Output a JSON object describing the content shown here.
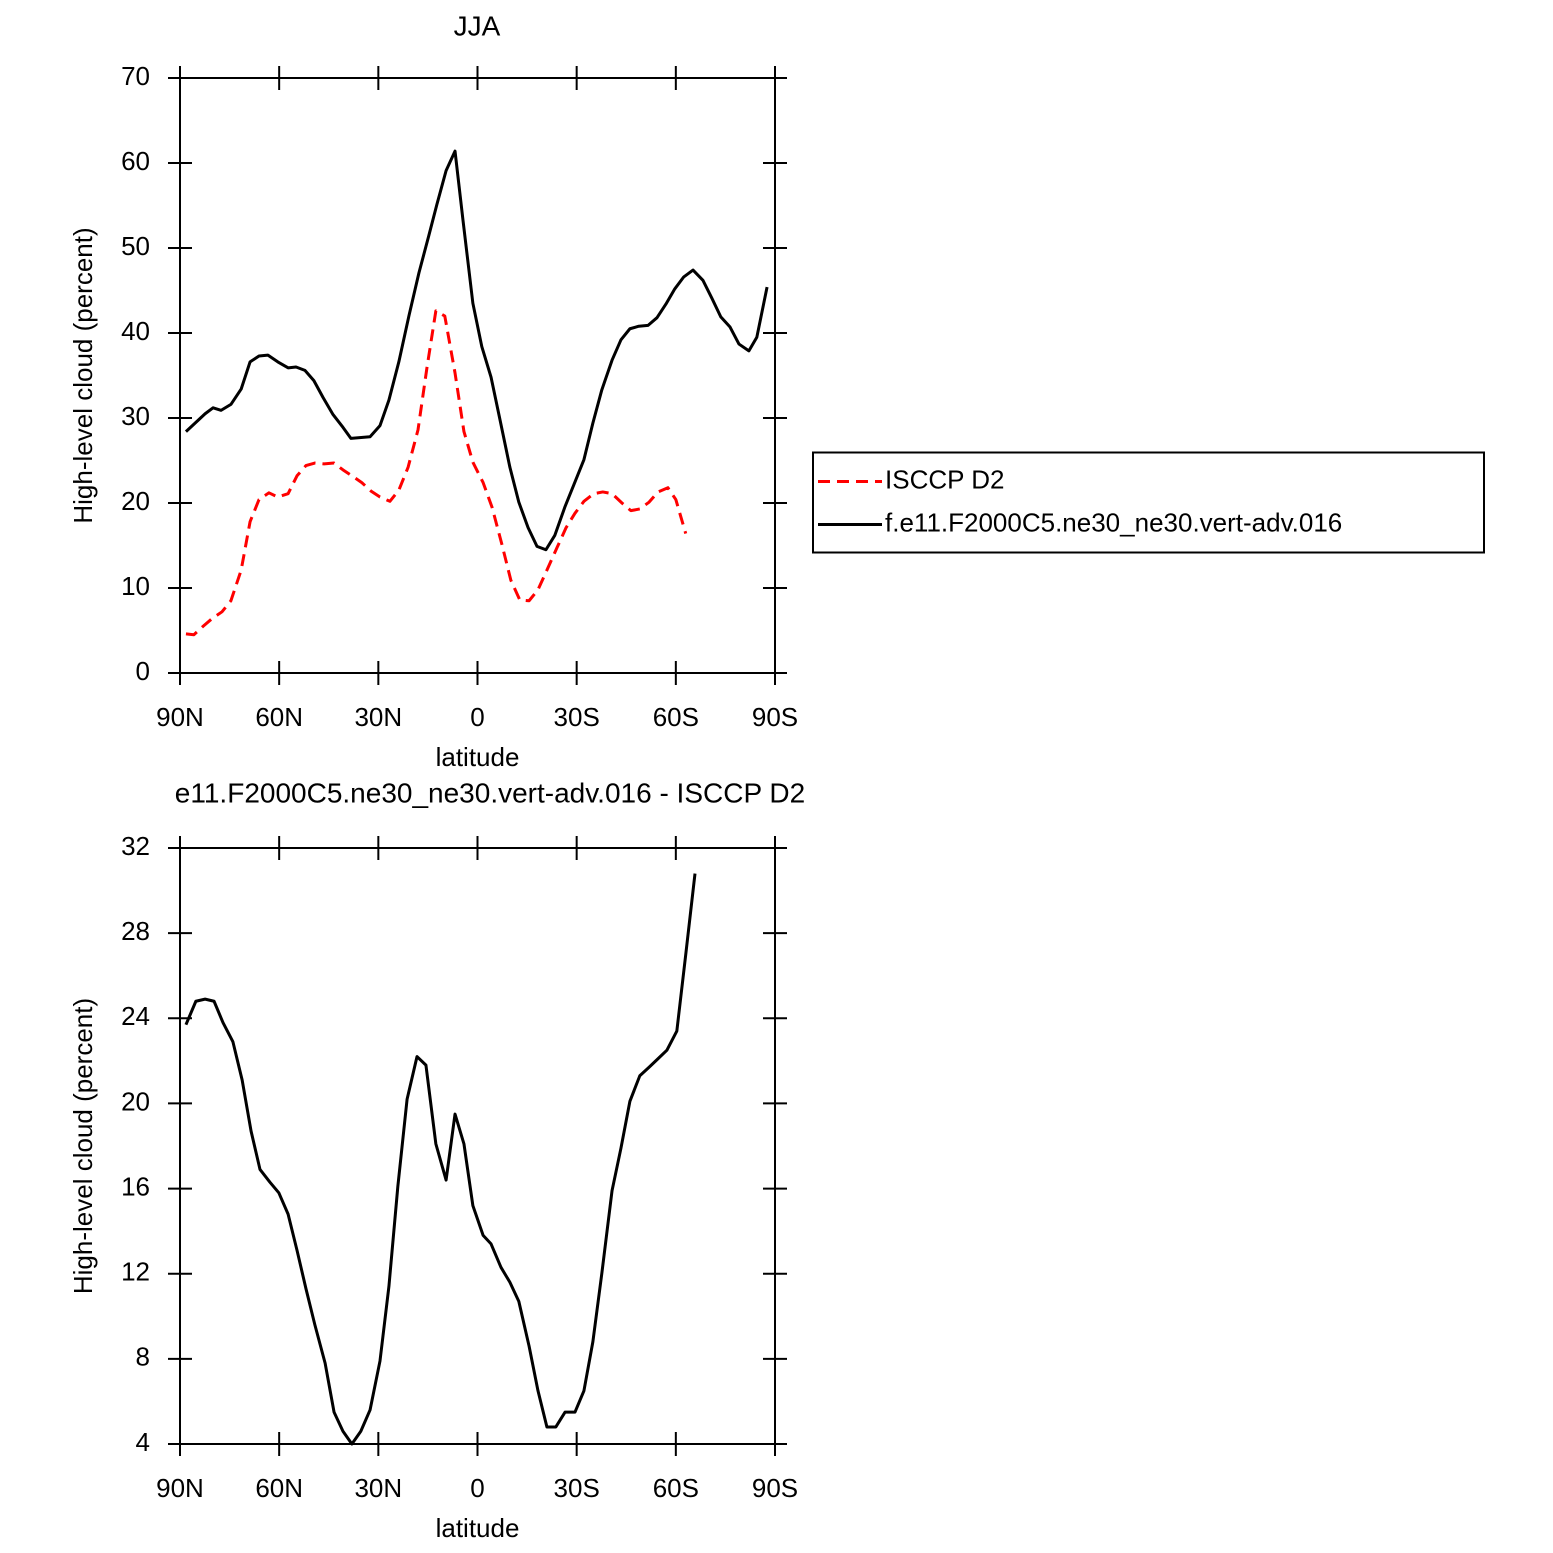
{
  "chart_data": [
    {
      "type": "line",
      "title": "JJA",
      "xlabel": "latitude",
      "ylabel": "High-level cloud (percent)",
      "xlim": [
        90,
        -90
      ],
      "xticks": [
        {
          "value": 90,
          "label": "90N"
        },
        {
          "value": 60,
          "label": "60N"
        },
        {
          "value": 30,
          "label": "30N"
        },
        0,
        {
          "value": -30,
          "label": "30S"
        },
        {
          "value": -60,
          "label": "60S"
        },
        {
          "value": -90,
          "label": "90S"
        }
      ],
      "ylim": [
        0,
        70
      ],
      "yticks": [
        0,
        10,
        20,
        30,
        40,
        50,
        60,
        70
      ],
      "legend": "right",
      "series": [
        {
          "name": "ISCCP D2",
          "color": "#ff0000",
          "line_style": "dashed",
          "x": [
            88.2,
            85.8,
            83.0,
            80.3,
            77.3,
            74.6,
            71.5,
            68.8,
            66.1,
            63.1,
            60.4,
            57.3,
            54.6,
            51.9,
            49.2,
            46.4,
            43.4,
            40.7,
            38.0,
            35.0,
            32.2,
            29.5,
            26.5,
            23.8,
            21.0,
            18.0,
            15.3,
            12.6,
            9.9,
            6.8,
            4.1,
            1.4,
            -1.7,
            -4.4,
            -7.4,
            -10.1,
            -12.8,
            -15.6,
            -18.3,
            -21.0,
            -24.0,
            -26.8,
            -29.5,
            -32.2,
            -35.2,
            -37.9,
            -40.7,
            -43.7,
            -46.4,
            -49.1,
            -51.9,
            -54.6,
            -57.6,
            -60.0,
            -63.0
          ],
          "values": [
            4.6,
            4.5,
            5.5,
            6.4,
            7.2,
            8.5,
            12.1,
            17.8,
            20.4,
            21.2,
            20.7,
            21.1,
            23.2,
            24.4,
            24.7,
            24.6,
            24.7,
            23.9,
            23.2,
            22.4,
            21.4,
            20.7,
            20.2,
            21.5,
            24.2,
            28.6,
            35.9,
            42.6,
            42.0,
            35.3,
            28.4,
            24.8,
            22.4,
            19.5,
            15.1,
            10.9,
            8.6,
            8.5,
            9.8,
            12.1,
            14.7,
            17.1,
            18.8,
            20.2,
            21.1,
            21.3,
            21.1,
            20.0,
            19.1,
            19.3,
            20.1,
            21.3,
            21.8,
            20.4,
            16.4
          ]
        },
        {
          "name": "f.e11.F2000C5.ne30_ne30.vert-adv.016",
          "color": "#000000",
          "line_style": "solid",
          "x": [
            88.2,
            82.4,
            80.0,
            77.6,
            74.6,
            71.5,
            68.8,
            66.1,
            63.4,
            60.4,
            57.3,
            54.9,
            52.2,
            49.5,
            46.7,
            43.7,
            40.7,
            38.3,
            32.5,
            29.5,
            26.8,
            23.8,
            20.7,
            17.7,
            14.7,
            12.3,
            9.5,
            6.8,
            4.4,
            1.4,
            -1.3,
            -4.1,
            -6.8,
            -9.8,
            -12.5,
            -15.3,
            -18.0,
            -20.7,
            -23.4,
            -26.5,
            -29.2,
            -32.2,
            -34.9,
            -37.6,
            -40.7,
            -43.4,
            -46.1,
            -48.8,
            -51.6,
            -54.3,
            -57.0,
            -59.7,
            -62.4,
            -65.2,
            -68.2,
            -70.9,
            -73.6,
            -76.4,
            -79.1,
            -82.1,
            -84.5,
            -87.6
          ],
          "values": [
            28.4,
            30.5,
            31.2,
            30.9,
            31.6,
            33.4,
            36.6,
            37.3,
            37.4,
            36.6,
            35.9,
            36.0,
            35.6,
            34.4,
            32.4,
            30.4,
            28.9,
            27.6,
            27.8,
            29.1,
            32.1,
            36.6,
            42.1,
            47.1,
            51.5,
            55.1,
            59.1,
            61.4,
            53.3,
            43.5,
            38.4,
            34.8,
            29.8,
            24.2,
            20.1,
            17.1,
            14.9,
            14.5,
            16.2,
            19.6,
            22.2,
            25.1,
            29.4,
            33.3,
            36.8,
            39.2,
            40.5,
            40.8,
            40.9,
            41.8,
            43.4,
            45.2,
            46.6,
            47.4,
            46.2,
            44.1,
            41.9,
            40.7,
            38.7,
            37.9,
            39.5,
            45.4
          ]
        }
      ]
    },
    {
      "type": "line",
      "title": "e11.F2000C5.ne30_ne30.vert-adv.016 - ISCCP D2",
      "xlabel": "latitude",
      "ylabel": "High-level cloud (percent)",
      "xlim": [
        90,
        -90
      ],
      "xticks": [
        {
          "value": 90,
          "label": "90N"
        },
        {
          "value": 60,
          "label": "60N"
        },
        {
          "value": 30,
          "label": "30N"
        },
        0,
        {
          "value": -30,
          "label": "30S"
        },
        {
          "value": -60,
          "label": "60S"
        },
        {
          "value": -90,
          "label": "90S"
        }
      ],
      "ylim": [
        4,
        32
      ],
      "yticks": [
        4,
        8,
        12,
        16,
        20,
        24,
        28,
        32
      ],
      "color": "#000000",
      "x": [
        88.2,
        85.2,
        82.4,
        79.7,
        77.0,
        74.0,
        71.2,
        68.5,
        65.8,
        62.8,
        60.1,
        57.3,
        54.6,
        51.9,
        49.2,
        46.1,
        43.4,
        40.7,
        38.0,
        35.3,
        32.5,
        29.5,
        26.8,
        24.1,
        21.3,
        18.3,
        15.6,
        12.6,
        9.5,
        6.8,
        4.1,
        1.4,
        -1.7,
        -4.1,
        -7.1,
        -9.8,
        -12.5,
        -15.6,
        -18.3,
        -21.0,
        -23.7,
        -26.5,
        -29.5,
        -32.2,
        -34.9,
        -37.6,
        -40.7,
        -43.4,
        -46.1,
        -49.1,
        -51.9,
        -54.6,
        -57.3,
        -60.3,
        -63.0,
        -65.8
      ],
      "values": [
        23.7,
        24.8,
        24.9,
        24.8,
        23.8,
        22.9,
        21.1,
        18.7,
        16.9,
        16.3,
        15.8,
        14.8,
        13.1,
        11.3,
        9.6,
        7.8,
        5.5,
        4.6,
        4.0,
        4.6,
        5.6,
        7.9,
        11.4,
        16.1,
        20.2,
        22.2,
        21.8,
        18.1,
        16.4,
        19.5,
        18.1,
        15.2,
        13.8,
        13.4,
        12.3,
        11.6,
        10.7,
        8.6,
        6.5,
        4.8,
        4.8,
        5.5,
        5.5,
        6.5,
        8.8,
        12.0,
        15.9,
        17.9,
        20.1,
        21.3,
        21.7,
        22.1,
        22.5,
        23.4,
        27.0,
        30.8
      ]
    }
  ]
}
